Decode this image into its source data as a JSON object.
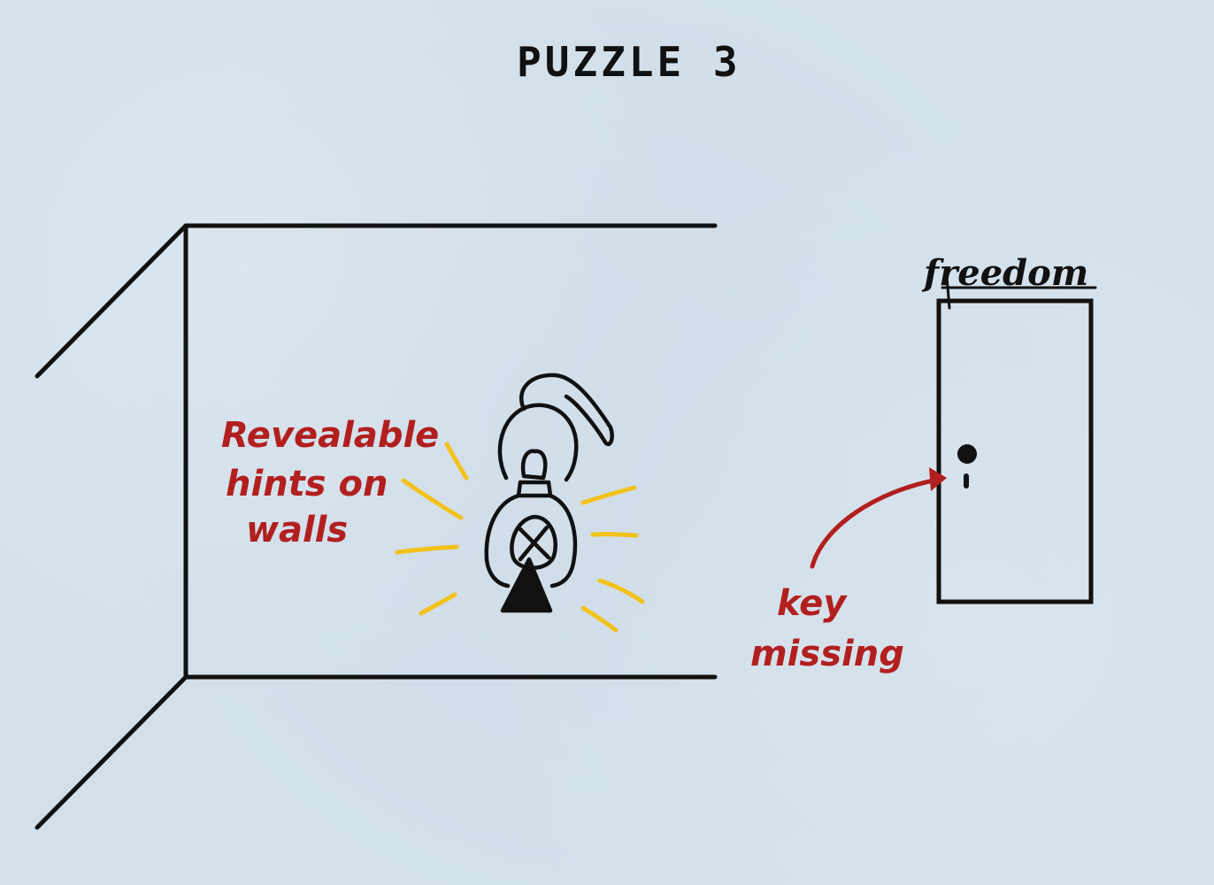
{
  "title": "PUZZLE 3",
  "door": {
    "label": "freedom"
  },
  "annotations": {
    "hints": [
      "Revealable",
      "hints on",
      "walls"
    ],
    "key": [
      "key",
      "missing"
    ]
  },
  "colors": {
    "background": "#d3e0ea",
    "ink": "#111111",
    "annotation": "#b21f1f",
    "glow": "#f2c21b"
  },
  "icons": {
    "lantern": "lantern-icon",
    "keyhole": "keyhole-icon",
    "arrow": "curved-arrow-icon"
  }
}
